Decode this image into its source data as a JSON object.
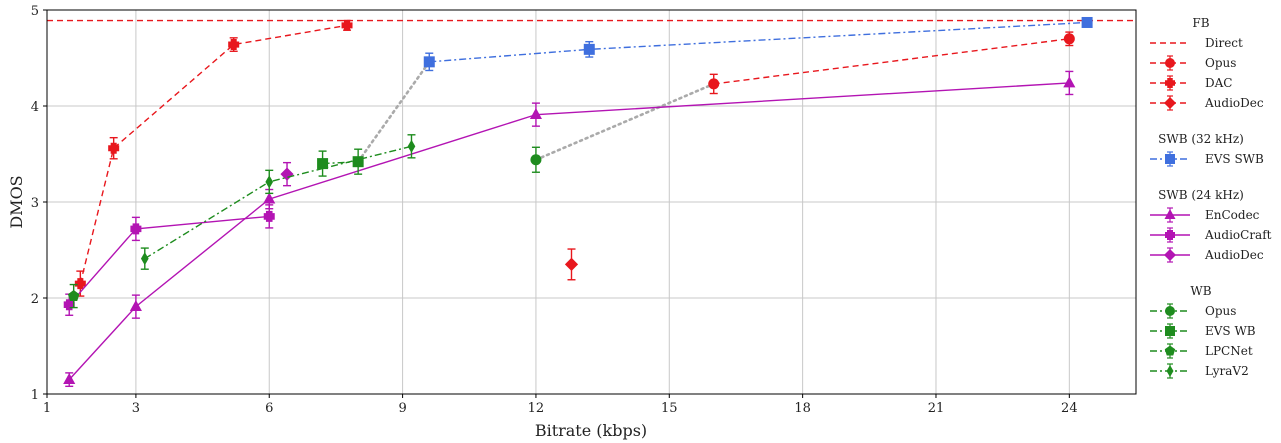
{
  "chart_data": {
    "type": "line",
    "xlabel": "Bitrate (kbps)",
    "ylabel": "DMOS",
    "xlim": [
      1,
      25.5
    ],
    "ylim": [
      1,
      5
    ],
    "xticks": [
      1,
      3,
      6,
      9,
      12,
      15,
      18,
      21,
      24
    ],
    "yticks": [
      1,
      2,
      3,
      4,
      5
    ],
    "grid": true,
    "legend_position": "right, outside plot",
    "reference_lines": [
      {
        "name": "Direct",
        "y": 4.89,
        "color": "#e8171d",
        "dash": "dashed"
      }
    ],
    "connectors": [
      {
        "from": [
          8.0,
          3.42
        ],
        "to": [
          9.6,
          4.46
        ],
        "color": "#aaaaaa",
        "dash": "dotted"
      },
      {
        "from": [
          12.0,
          3.44
        ],
        "to": [
          16.0,
          4.23
        ],
        "color": "#aaaaaa",
        "dash": "dotted"
      }
    ],
    "groups": [
      {
        "title": "FB",
        "series": [
          "Direct",
          "Opus FB",
          "DAC",
          "AudioDec FB"
        ]
      },
      {
        "title": "SWB (32 kHz)",
        "series": [
          "EVS SWB"
        ]
      },
      {
        "title": "SWB (24 kHz)",
        "series": [
          "EnCodec",
          "AudioCraft",
          "AudioDec SWB"
        ]
      },
      {
        "title": "WB",
        "series": [
          "Opus WB",
          "EVS WB",
          "LPCNet",
          "LyraV2"
        ]
      }
    ],
    "series": [
      {
        "id": "Opus FB",
        "label": "Opus",
        "color": "#e8171d",
        "dash": "dashed",
        "marker": "circle",
        "points": [
          [
            16,
            4.23,
            0.1
          ],
          [
            24,
            4.7,
            0.07
          ]
        ]
      },
      {
        "id": "DAC",
        "label": "DAC",
        "color": "#e8171d",
        "dash": "dashed",
        "marker": "plus",
        "points": [
          [
            1.75,
            2.15,
            0.13
          ],
          [
            2.5,
            3.56,
            0.11
          ],
          [
            5.2,
            4.64,
            0.07
          ],
          [
            7.75,
            4.84,
            0.05
          ]
        ]
      },
      {
        "id": "AudioDec FB",
        "label": "AudioDec",
        "color": "#e8171d",
        "dash": "dashed",
        "marker": "diamond",
        "points": [
          [
            12.8,
            2.35,
            0.16
          ]
        ]
      },
      {
        "id": "EVS SWB",
        "label": "EVS SWB",
        "color": "#3f6fde",
        "dash": "dashdot",
        "marker": "square",
        "points": [
          [
            9.6,
            4.46,
            0.09
          ],
          [
            13.2,
            4.59,
            0.08
          ],
          [
            24.4,
            4.87,
            0.04
          ]
        ]
      },
      {
        "id": "EnCodec",
        "label": "EnCodec",
        "color": "#b314b3",
        "dash": "solid",
        "marker": "triangle",
        "points": [
          [
            1.5,
            1.15,
            0.07
          ],
          [
            3,
            1.91,
            0.12
          ],
          [
            6,
            3.03,
            0.1
          ],
          [
            12,
            3.91,
            0.12
          ],
          [
            24,
            4.24,
            0.12
          ]
        ]
      },
      {
        "id": "AudioCraft",
        "label": "AudioCraft",
        "color": "#b314b3",
        "dash": "solid",
        "marker": "plus-dot",
        "points": [
          [
            1.5,
            1.93,
            0.11
          ],
          [
            3,
            2.72,
            0.12
          ],
          [
            6,
            2.85,
            0.12
          ]
        ]
      },
      {
        "id": "AudioDec SWB",
        "label": "AudioDec",
        "color": "#b314b3",
        "dash": "solid",
        "marker": "diamond",
        "points": [
          [
            6.4,
            3.29,
            0.12
          ]
        ]
      },
      {
        "id": "Opus WB",
        "label": "Opus",
        "color": "#1e8c1e",
        "dash": "dashdot",
        "marker": "circle",
        "points": [
          [
            12,
            3.44,
            0.13
          ]
        ]
      },
      {
        "id": "EVS WB",
        "label": "EVS WB",
        "color": "#1e8c1e",
        "dash": "dashdot",
        "marker": "square",
        "points": [
          [
            7.2,
            3.4,
            0.13
          ],
          [
            8.0,
            3.42,
            0.13
          ]
        ]
      },
      {
        "id": "LPCNet",
        "label": "LPCNet",
        "color": "#1e8c1e",
        "dash": "dashdot",
        "marker": "pentagon",
        "points": [
          [
            1.6,
            2.02,
            0.12
          ]
        ]
      },
      {
        "id": "LyraV2",
        "label": "LyraV2",
        "color": "#1e8c1e",
        "dash": "dashdot",
        "marker": "thin-diamond",
        "points": [
          [
            3.2,
            2.41,
            0.11
          ],
          [
            6,
            3.21,
            0.12
          ],
          [
            9.2,
            3.58,
            0.12
          ]
        ]
      }
    ],
    "legend_labels": {
      "FB": "FB",
      "Direct": "Direct",
      "Opus FB": "Opus",
      "DAC": "DAC",
      "AudioDec FB": "AudioDec",
      "SWB (32 kHz)": "SWB (32 kHz)",
      "EVS SWB": "EVS SWB",
      "SWB (24 kHz)": "SWB (24 kHz)",
      "EnCodec": "EnCodec",
      "AudioCraft": "AudioCraft",
      "AudioDec SWB": "AudioDec",
      "WB": "WB",
      "Opus WB": "Opus",
      "EVS WB": "EVS WB",
      "LPCNet": "LPCNet",
      "LyraV2": "LyraV2"
    }
  }
}
